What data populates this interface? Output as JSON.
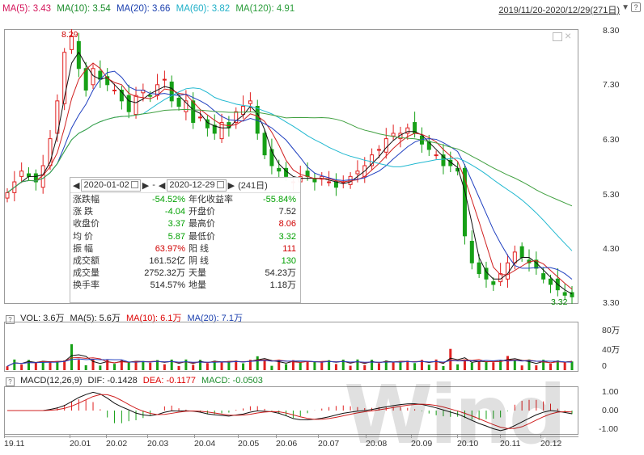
{
  "header": {
    "ma5": "MA(5): 3.43",
    "ma10": "MA(10): 3.54",
    "ma20": "MA(20): 3.66",
    "ma60": "MA(60): 3.82",
    "ma120": "MA(120): 4.91",
    "range": "2019/11/20-2020/12/29(271日)",
    "dropdown": "▼",
    "help": "?"
  },
  "colors": {
    "ma5": "#d4145a",
    "ma10": "#1a8c2a",
    "ma20": "#1a3fae",
    "ma60": "#1fb0c8",
    "ma120": "#2a9d3a",
    "up": "#e02020",
    "down": "#16a016",
    "ma5_line": "#111111",
    "ma10_line": "#d02020",
    "ma20_line": "#2040c0",
    "ma60_line": "#20b8d0",
    "ma120_line": "#40a040"
  },
  "price_axis": [
    "8.30",
    "7.30",
    "6.30",
    "5.30",
    "4.30",
    "3.30"
  ],
  "high_label": "8.29",
  "low_label": "3.32",
  "volume": {
    "help": "?",
    "vol": "VOL: 3.6万",
    "ma5": "MA(5): 5.6万",
    "ma10": "MA(10): 6.1万",
    "ma20": "MA(20): 7.1万",
    "axis": [
      "80万",
      "40万",
      "0"
    ]
  },
  "macd": {
    "help": "?",
    "title": "MACD(12,26,9)",
    "dif": "DIF: -0.1428",
    "dea": "DEA: -0.1177",
    "macd": "MACD: -0.0503",
    "axis": [
      "1.00",
      "0.00",
      "-1.00"
    ]
  },
  "x_axis": [
    "19.11",
    "20.01",
    "20.02",
    "20.03",
    "20.04",
    "20.05",
    "20.06",
    "20.07",
    "20.08",
    "20.09",
    "20.10",
    "20.11",
    "20.12"
  ],
  "tooltip": {
    "start_date": "2020-01-02",
    "dash": "-",
    "end_date": "2020-12-29",
    "days": "(241日)",
    "rows": [
      {
        "l1": "涨跌幅",
        "v1": "-54.52%",
        "c1": "grn",
        "l2": "年化收益率",
        "v2": "-55.84%",
        "c2": "grn"
      },
      {
        "l1": "涨 跌",
        "v1": "-4.04",
        "c1": "grn",
        "l2": "开盘价",
        "v2": "7.52",
        "c2": "blk"
      },
      {
        "l1": "收盘价",
        "v1": "3.37",
        "c1": "grn",
        "l2": "最高价",
        "v2": "8.06",
        "c2": "red"
      },
      {
        "l1": "均 价",
        "v1": "5.87",
        "c1": "grn",
        "l2": "最低价",
        "v2": "3.32",
        "c2": "grn"
      },
      {
        "l1": "振 幅",
        "v1": "63.97%",
        "c1": "red",
        "l2": "阳 线",
        "v2": "111",
        "c2": "red"
      },
      {
        "l1": "成交额",
        "v1": "161.52亿",
        "c1": "blk",
        "l2": "阴 线",
        "v2": "130",
        "c2": "grn"
      },
      {
        "l1": "成交量",
        "v1": "2752.32万",
        "c1": "blk",
        "l2": "天量",
        "v2": "54.23万",
        "c2": "blk"
      },
      {
        "l1": "换手率",
        "v1": "514.57%",
        "c1": "blk",
        "l2": "地量",
        "v2": "1.18万",
        "c2": "blk"
      }
    ]
  },
  "watermark": "Wind",
  "chart_data": {
    "type": "candlestick",
    "price_range": [
      3.3,
      8.3
    ],
    "closes": [
      5.3,
      5.5,
      5.7,
      5.6,
      5.5,
      5.8,
      6.3,
      7.0,
      7.9,
      8.2,
      7.6,
      7.2,
      7.6,
      7.4,
      7.3,
      7.2,
      7.0,
      6.8,
      7.1,
      7.2,
      7.1,
      7.3,
      7.4,
      7.0,
      6.9,
      7.0,
      6.6,
      6.7,
      6.5,
      6.4,
      6.6,
      6.5,
      6.8,
      6.9,
      7.0,
      6.4,
      6.0,
      5.8,
      5.7,
      5.6,
      5.5,
      5.6,
      5.6,
      5.5,
      5.6,
      5.5,
      5.4,
      5.5,
      5.6,
      5.7,
      5.8,
      6.0,
      6.1,
      6.3,
      6.4,
      6.4,
      6.5,
      6.4,
      6.2,
      6.1,
      6.0,
      5.8,
      5.8,
      5.7,
      4.5,
      4.0,
      3.8,
      3.7,
      3.6,
      3.8,
      4.0,
      4.2,
      4.1,
      4.0,
      3.9,
      3.7,
      3.6,
      3.5,
      3.4,
      3.37
    ]
  }
}
